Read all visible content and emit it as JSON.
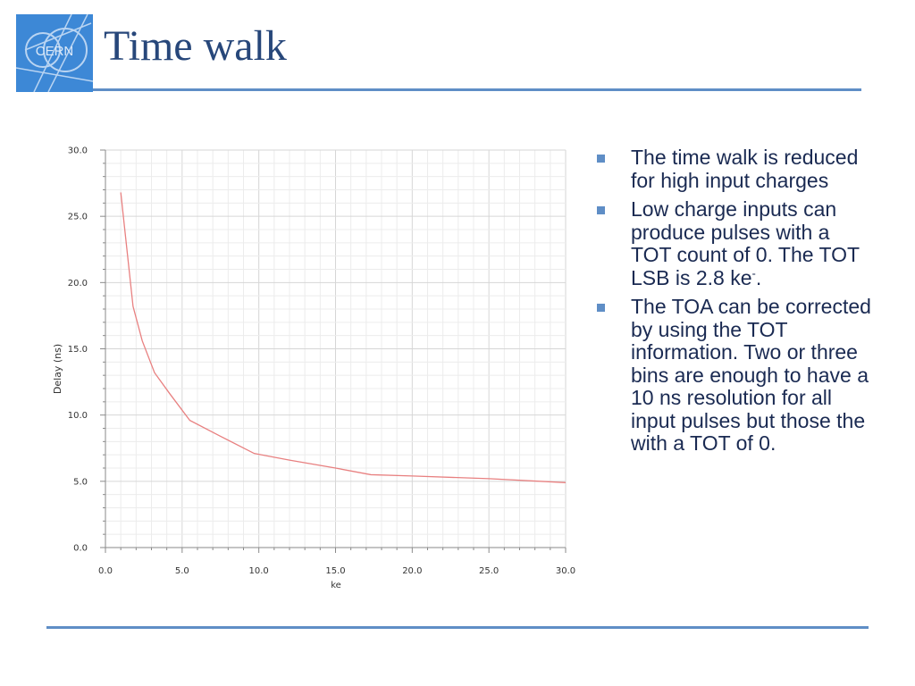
{
  "slide": {
    "title": "Time walk",
    "logo": {
      "text": "CERN",
      "icon": "cern-logo"
    },
    "accent_color": "#5f8ec6",
    "title_color": "#27477a"
  },
  "bullets": [
    {
      "text": "The time walk is reduced for high input charges"
    },
    {
      "text": "Low charge inputs can produce pulses with a TOT count of 0. The TOT LSB is 2.8 ke",
      "sup": "-",
      "tail": "."
    },
    {
      "text": "The TOA can be corrected by using the TOT information. Two or three bins are enough to have a 10 ns resolution for all input pulses but those the with a TOT of 0."
    }
  ],
  "chart_data": {
    "type": "line",
    "xlabel": "ke",
    "ylabel": "Delay (ns)",
    "xlim": [
      0,
      30
    ],
    "ylim": [
      0,
      30
    ],
    "x_ticks": [
      "0.0",
      "5.0",
      "10.0",
      "15.0",
      "20.0",
      "25.0",
      "30.0"
    ],
    "y_ticks": [
      "0.0",
      "5.0",
      "10.0",
      "15.0",
      "20.0",
      "25.0",
      "30.0"
    ],
    "grid": true,
    "line_color": "#e88080",
    "series": [
      {
        "x": [
          1.0,
          1.8,
          2.4,
          3.2,
          4.2,
          5.5,
          7.5,
          9.7,
          12.0,
          15.0,
          17.3,
          20.0,
          25.0,
          30.0
        ],
        "values": [
          26.8,
          18.2,
          15.6,
          13.2,
          11.6,
          9.6,
          8.4,
          7.1,
          6.6,
          6.0,
          5.5,
          5.4,
          5.2,
          4.9
        ]
      }
    ]
  }
}
